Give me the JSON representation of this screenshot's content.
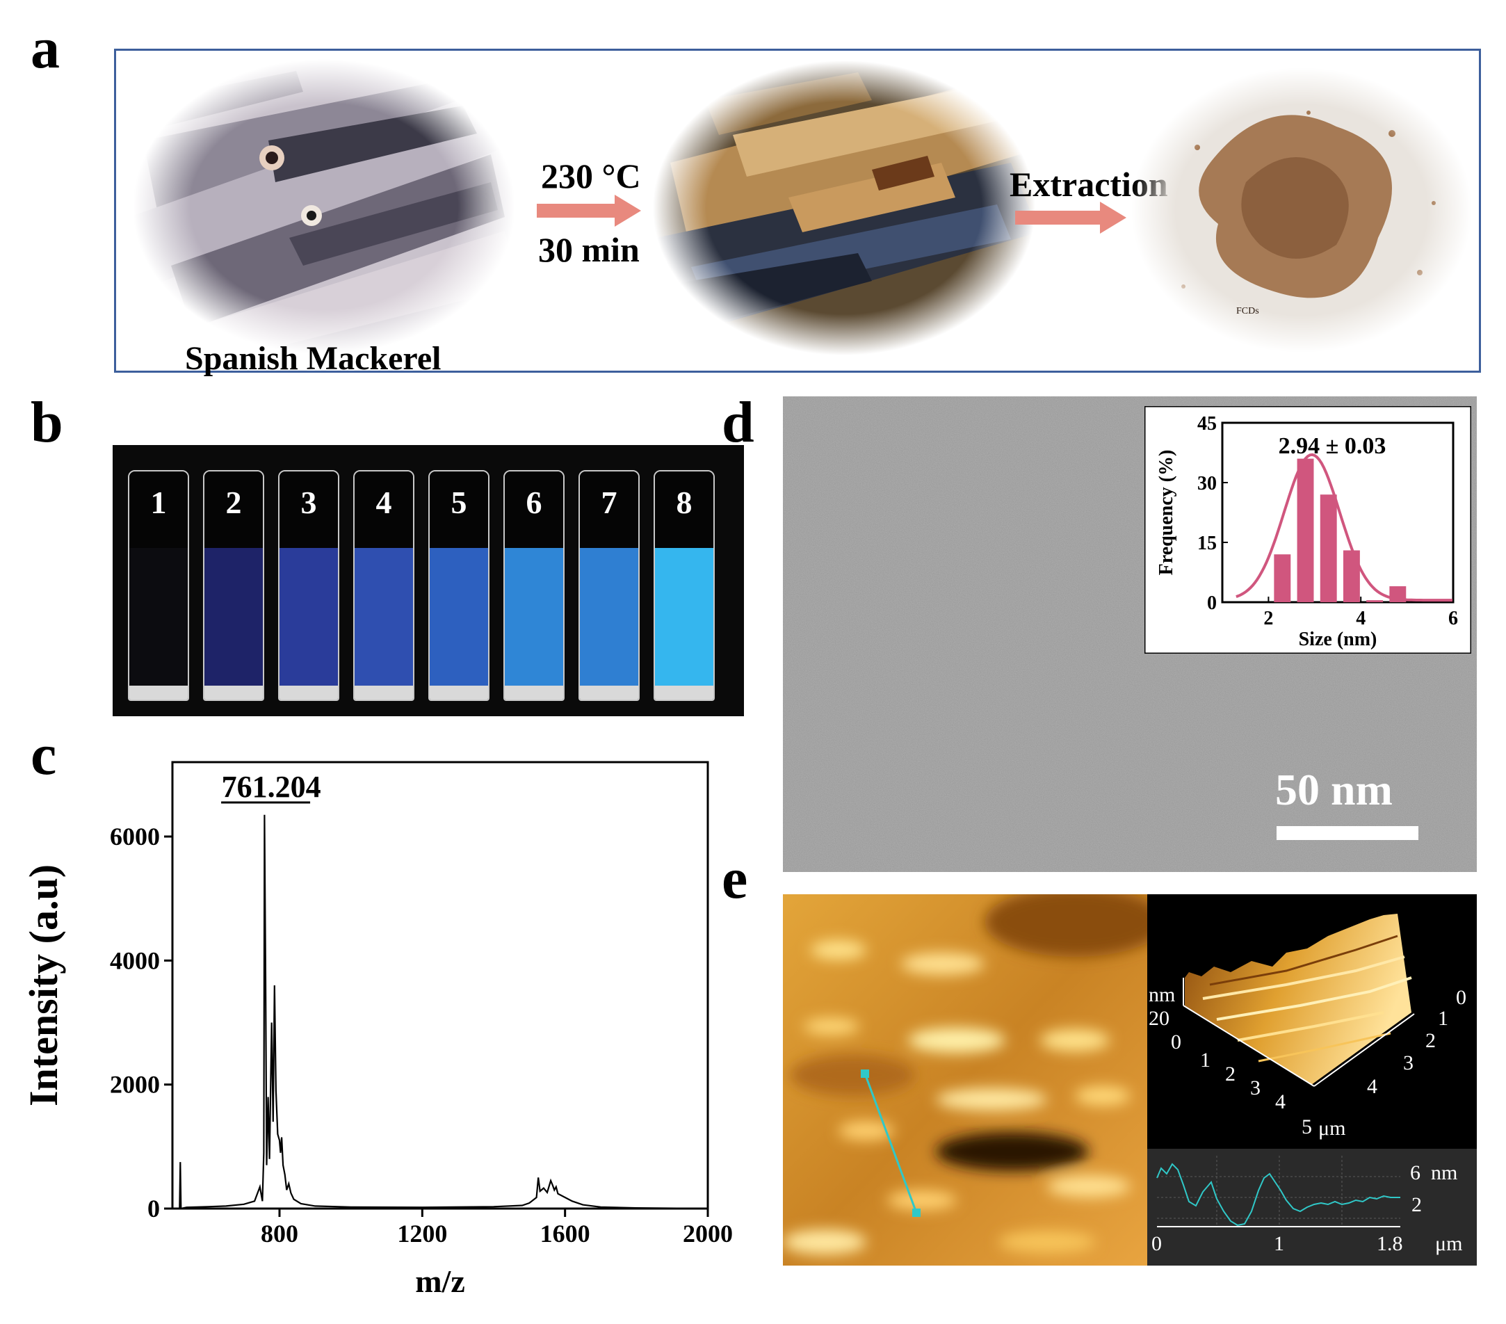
{
  "panel_labels": {
    "a": "a",
    "b": "b",
    "c": "c",
    "d": "d",
    "e": "e"
  },
  "panel_a": {
    "fish_caption": "Spanish Mackerel",
    "step1_temp": "230 °C",
    "step1_time": "30 min",
    "step2": "Extraction",
    "powder_label": "FCDs",
    "colors": {
      "frame": "#3d5f9c",
      "arrow": "#e8897e"
    }
  },
  "panel_b": {
    "cuvettes": [
      {
        "label": "1",
        "color": "#0c0c10"
      },
      {
        "label": "2",
        "color": "#1e2368"
      },
      {
        "label": "3",
        "color": "#2a3c9a"
      },
      {
        "label": "4",
        "color": "#2f4fb0"
      },
      {
        "label": "5",
        "color": "#2d60bf"
      },
      {
        "label": "6",
        "color": "#2f86d6"
      },
      {
        "label": "7",
        "color": "#2f7fd2"
      },
      {
        "label": "8",
        "color": "#35b6ee"
      }
    ]
  },
  "chart_data": [
    {
      "type": "line",
      "panel": "c",
      "peak_label": "761.204",
      "xlabel": "m/z",
      "ylabel": "Intensity (a.u)",
      "xlim": [
        500,
        2000
      ],
      "ylim": [
        0,
        7200
      ],
      "xticks": [
        "800",
        "1200",
        "1600",
        "2000"
      ],
      "yticks": [
        "0",
        "2000",
        "4000",
        "6000"
      ],
      "x": [
        500,
        520,
        522,
        524,
        540,
        600,
        650,
        700,
        730,
        745,
        752,
        756,
        758,
        761,
        764,
        768,
        772,
        778,
        782,
        786,
        790,
        795,
        800,
        803,
        806,
        810,
        815,
        820,
        826,
        832,
        840,
        860,
        900,
        1000,
        1200,
        1400,
        1480,
        1500,
        1520,
        1525,
        1530,
        1540,
        1550,
        1560,
        1565,
        1570,
        1575,
        1580,
        1600,
        1620,
        1650,
        1700,
        1800,
        2000
      ],
      "y": [
        0,
        0,
        750,
        0,
        20,
        30,
        40,
        70,
        120,
        350,
        120,
        900,
        6350,
        3700,
        700,
        1800,
        800,
        3000,
        1400,
        3600,
        1900,
        1200,
        1100,
        900,
        1150,
        700,
        550,
        300,
        400,
        250,
        150,
        80,
        40,
        25,
        20,
        30,
        50,
        90,
        180,
        500,
        280,
        330,
        260,
        450,
        380,
        300,
        350,
        240,
        180,
        120,
        60,
        25,
        10,
        0
      ]
    },
    {
      "type": "bar",
      "panel": "d-inset",
      "title": "2.94 ± 0.03",
      "xlabel": "Size (nm)",
      "ylabel": "Frequency (%)",
      "xlim": [
        1,
        6
      ],
      "ylim": [
        0,
        45
      ],
      "xticks": [
        "2",
        "4",
        "6"
      ],
      "yticks": [
        "0",
        "15",
        "30",
        "45"
      ],
      "x": [
        2.3,
        2.8,
        3.3,
        3.8,
        4.3,
        4.8
      ],
      "values": [
        12,
        36,
        27,
        13,
        0.5,
        4
      ],
      "fit": {
        "mean": 2.94,
        "sigma": 0.6,
        "amplitude": 36.5
      },
      "bar_color": "#d0567e"
    }
  ],
  "panel_d": {
    "scale_bar": "50 nm"
  },
  "panel_e": {
    "z_unit": "nm",
    "z_max": "20",
    "z_zero": "0",
    "x_ticks": [
      "0",
      "1",
      "2",
      "3",
      "4",
      "5"
    ],
    "y_ticks": [
      "0",
      "1",
      "2",
      "3",
      "4"
    ],
    "xy_unit": "μm",
    "profile_unit_top": "nm",
    "profile_y_ticks": [
      "6",
      "2"
    ],
    "profile_x_ticks": [
      "0",
      "1",
      "1.8"
    ],
    "profile_x_unit": "μm",
    "line_color": "#30c8c8"
  }
}
